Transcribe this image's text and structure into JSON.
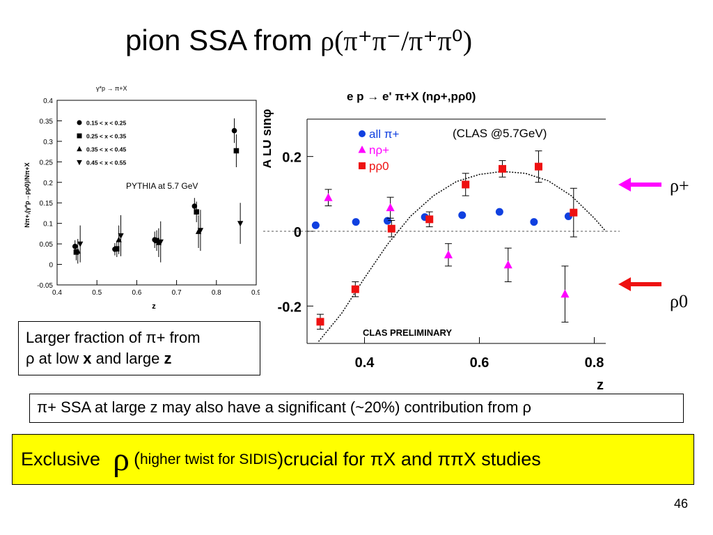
{
  "slide": {
    "title_prefix": "pion SSA from ",
    "title_formula": "ρ(π⁺π⁻/π⁺π⁰)",
    "page_number": "46",
    "box_larger": {
      "line1": "Larger fraction of π+ from",
      "line2_prefix": "ρ at low ",
      "bold_x": "x",
      "line2_mid": " and large ",
      "bold_z": "z"
    },
    "box_ssa": "π+ SSA at large z may also have a significant (~20%) contribution from ρ",
    "box_exclusive": {
      "part1": "Exclusive",
      "rho": "ρ",
      "paren_open": "(",
      "note": "higher twist for SIDIS",
      "paren_close": ")",
      "part2": " crucial for πX and ππX studies"
    },
    "arrow_labels": {
      "rho_plus": "ρ+",
      "rho_zero": "ρ0"
    },
    "colors": {
      "highlight": "#ffff00",
      "blue": "#1040e0",
      "magenta": "#ff00ff",
      "red": "#ee1111",
      "arrow_magenta": "#ff00ff",
      "arrow_red": "#ee1111"
    }
  },
  "chart_data": [
    {
      "type": "scatter",
      "title": "γ*p → π+X",
      "ylabel": "Nπ+,(γ*p→pρ0)/Nπ+X",
      "xlabel": "z",
      "annotation": "PYTHIA at 5.7 GeV",
      "xlim": [
        0.4,
        0.9
      ],
      "ylim": [
        -0.05,
        0.4
      ],
      "xticks": [
        "0.4",
        "0.5",
        "0.6",
        "0.7",
        "0.8",
        "0.9"
      ],
      "yticks": [
        "-0.05",
        "0",
        "0.05",
        "0.1",
        "0.15",
        "0.2",
        "0.25",
        "0.3",
        "0.35",
        "0.4"
      ],
      "legend_placement": "top-left",
      "series": [
        {
          "name": "0.15 < x < 0.25",
          "marker": "circle",
          "points": [
            [
              0.445,
              0.044,
              0.015
            ],
            [
              0.545,
              0.037,
              0.015
            ],
            [
              0.645,
              0.06,
              0.02
            ],
            [
              0.745,
              0.142,
              0.02
            ],
            [
              0.845,
              0.326,
              0.03
            ]
          ]
        },
        {
          "name": "0.25 < x < 0.35",
          "marker": "square",
          "points": [
            [
              0.448,
              0.03,
              0.02
            ],
            [
              0.55,
              0.038,
              0.02
            ],
            [
              0.65,
              0.058,
              0.025
            ],
            [
              0.75,
              0.128,
              0.025
            ],
            [
              0.85,
              0.277,
              0.04
            ]
          ]
        },
        {
          "name": "0.35 < x < 0.45",
          "marker": "triangle-up",
          "points": [
            [
              0.452,
              0.032,
              0.03
            ],
            [
              0.555,
              0.06,
              0.035
            ],
            [
              0.655,
              0.053,
              0.035
            ],
            [
              0.755,
              0.08,
              0.04
            ]
          ]
        },
        {
          "name": "0.45 < x < 0.55",
          "marker": "triangle-down",
          "points": [
            [
              0.458,
              0.05,
              0.045
            ],
            [
              0.56,
              0.07,
              0.05
            ],
            [
              0.66,
              0.055,
              0.05
            ],
            [
              0.76,
              0.083,
              0.05
            ],
            [
              0.86,
              0.1,
              0.05
            ]
          ]
        }
      ]
    },
    {
      "type": "scatter",
      "title": "e p → e' π+X (nρ+,pρ0)",
      "ylabel": "A LU sinφ",
      "xlabel": "z",
      "annotation": "(CLAS @5.7GeV)",
      "watermark": "CLAS PRELIMINARY",
      "xlim": [
        0.3,
        0.82
      ],
      "ylim": [
        -0.3,
        0.3
      ],
      "xticks": [
        "0.4",
        "0.6",
        "0.8"
      ],
      "yticks": [
        "0.2",
        "0",
        "-0.2"
      ],
      "legend_placement": "top-left",
      "series": [
        {
          "name": "all π+",
          "marker": "circle",
          "color": "#1040e0",
          "points": [
            [
              0.315,
              0.016,
              0.0
            ],
            [
              0.385,
              0.025,
              0.0
            ],
            [
              0.44,
              0.028,
              0.0
            ],
            [
              0.505,
              0.038,
              0.0
            ],
            [
              0.57,
              0.043,
              0.0
            ],
            [
              0.635,
              0.052,
              0.0
            ],
            [
              0.695,
              0.025,
              0.0
            ],
            [
              0.755,
              0.04,
              0.0
            ]
          ]
        },
        {
          "name": "nρ+",
          "marker": "triangle-up",
          "color": "#ff00ff",
          "points": [
            [
              0.337,
              0.09,
              0.022
            ],
            [
              0.445,
              0.063,
              0.028
            ],
            [
              0.546,
              -0.063,
              0.03
            ],
            [
              0.65,
              -0.09,
              0.045
            ],
            [
              0.749,
              -0.168,
              0.075
            ]
          ]
        },
        {
          "name": "pρ0",
          "marker": "square",
          "color": "#ee1111",
          "points": [
            [
              0.323,
              -0.242,
              0.02
            ],
            [
              0.384,
              -0.155,
              0.02
            ],
            [
              0.447,
              0.007,
              0.022
            ],
            [
              0.513,
              0.032,
              0.02
            ],
            [
              0.576,
              0.125,
              0.03
            ],
            [
              0.64,
              0.167,
              0.022
            ],
            [
              0.703,
              0.173,
              0.042
            ],
            [
              0.764,
              0.05,
              0.065
            ]
          ]
        },
        {
          "name": "fit",
          "type": "curve",
          "points": [
            [
              0.32,
              -0.295
            ],
            [
              0.36,
              -0.22
            ],
            [
              0.4,
              -0.125
            ],
            [
              0.44,
              -0.035
            ],
            [
              0.48,
              0.04
            ],
            [
              0.52,
              0.095
            ],
            [
              0.56,
              0.133
            ],
            [
              0.6,
              0.152
            ],
            [
              0.64,
              0.16
            ],
            [
              0.68,
              0.155
            ],
            [
              0.72,
              0.135
            ],
            [
              0.76,
              0.095
            ],
            [
              0.8,
              0.035
            ],
            [
              0.82,
              0.0
            ]
          ]
        }
      ]
    }
  ]
}
